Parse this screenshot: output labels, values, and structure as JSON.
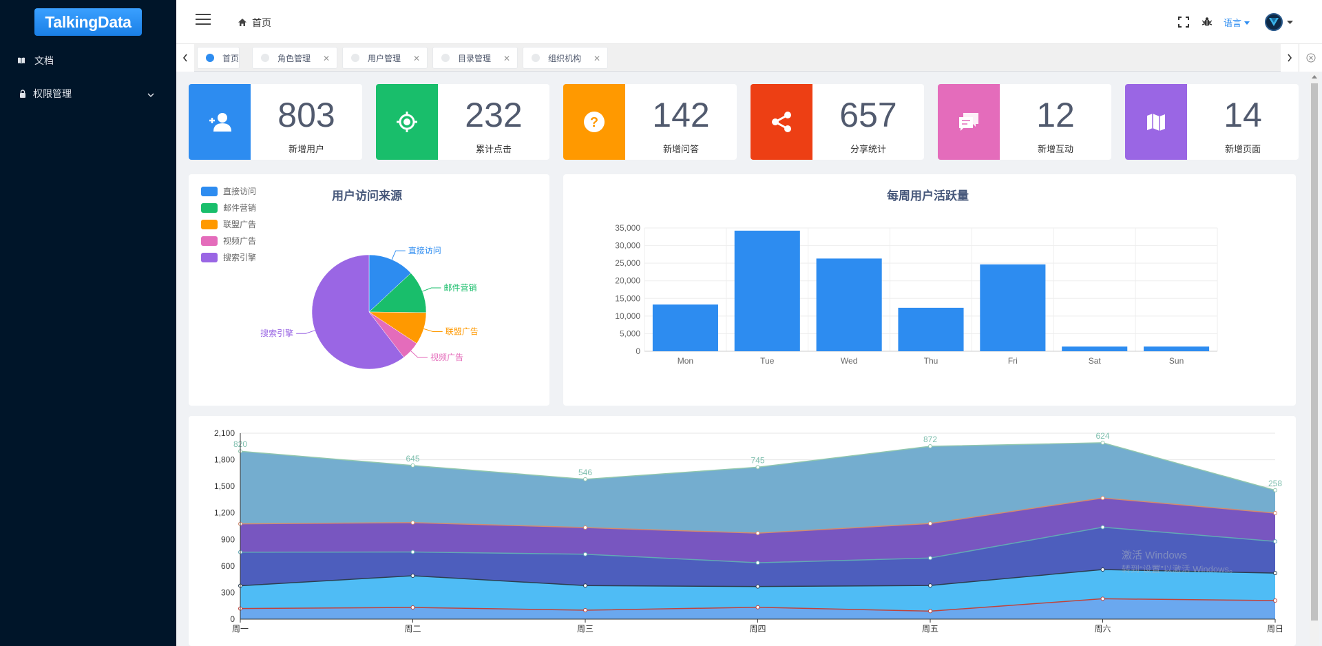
{
  "brand": "TalkingData",
  "sidebar": {
    "items": [
      {
        "label": "文档",
        "icon": "book-icon"
      },
      {
        "label": "权限管理",
        "icon": "lock-icon"
      }
    ]
  },
  "header": {
    "breadcrumb": "首页",
    "language": "语言"
  },
  "tabs": [
    {
      "label": "首页",
      "active": true
    },
    {
      "label": "角色管理",
      "active": false
    },
    {
      "label": "用户管理",
      "active": false
    },
    {
      "label": "目录管理",
      "active": false
    },
    {
      "label": "组织机构",
      "active": false
    }
  ],
  "stats": [
    {
      "value": "803",
      "label": "新增用户",
      "color": "#2d8cf0",
      "icon": "user-add-icon"
    },
    {
      "value": "232",
      "label": "累计点击",
      "color": "#19be6b",
      "icon": "locate-icon"
    },
    {
      "value": "142",
      "label": "新增问答",
      "color": "#ff9900",
      "icon": "help-icon"
    },
    {
      "value": "657",
      "label": "分享统计",
      "color": "#ed3f14",
      "icon": "share-icon"
    },
    {
      "value": "12",
      "label": "新增互动",
      "color": "#e46cbb",
      "icon": "chat-icon"
    },
    {
      "value": "14",
      "label": "新增页面",
      "color": "#9a66e4",
      "icon": "map-icon"
    }
  ],
  "chart_data": [
    {
      "type": "pie",
      "title": "用户访问来源",
      "legend": "top-left",
      "slices": [
        {
          "name": "直接访问",
          "value": 335,
          "color": "#2d8cf0"
        },
        {
          "name": "邮件营销",
          "value": 310,
          "color": "#19be6b"
        },
        {
          "name": "联盟广告",
          "value": 234,
          "color": "#ff9900"
        },
        {
          "name": "视频广告",
          "value": 135,
          "color": "#e46cbb"
        },
        {
          "name": "搜索引擎",
          "value": 1548,
          "color": "#9a66e4"
        }
      ]
    },
    {
      "type": "bar",
      "title": "每周用户活跃量",
      "categories": [
        "Mon",
        "Tue",
        "Wed",
        "Thu",
        "Fri",
        "Sat",
        "Sun"
      ],
      "values": [
        13253,
        34235,
        26321,
        12340,
        24643,
        1322,
        1324
      ],
      "yticks": [
        "0",
        "5,000",
        "10,000",
        "15,000",
        "20,000",
        "25,000",
        "30,000",
        "35,000"
      ],
      "ylim": [
        0,
        35000
      ],
      "color": "#2d8cf0",
      "grid": true
    },
    {
      "type": "area",
      "stacked": true,
      "categories": [
        "周一",
        "周二",
        "周三",
        "周四",
        "周五",
        "周六",
        "周日"
      ],
      "ylim": [
        0,
        2100
      ],
      "yticks": [
        "0",
        "300",
        "600",
        "900",
        "1,200",
        "1,500",
        "1,800",
        "2,100"
      ],
      "series": [
        {
          "values": [
            120,
            132,
            101,
            134,
            90,
            230,
            210
          ],
          "color": "#6aa8ef",
          "line": "#c0433b"
        },
        {
          "values": [
            257,
            358,
            278,
            234,
            290,
            330,
            310
          ],
          "color": "#4fbcf5",
          "line": "#2c3e50"
        },
        {
          "values": [
            379,
            268,
            354,
            269,
            310,
            478,
            358
          ],
          "color": "#4d5ebd",
          "line": "#62a9b5"
        },
        {
          "values": [
            320,
            332,
            301,
            334,
            390,
            330,
            320
          ],
          "color": "#7856c0",
          "line": "#d48a6e"
        },
        {
          "values": [
            820,
            645,
            546,
            745,
            872,
            624,
            258
          ],
          "color": "#74adcf",
          "line": "#91c7ae"
        }
      ],
      "top_labels": [
        "820",
        "645",
        "546",
        "745",
        "872",
        "624",
        "258"
      ]
    }
  ],
  "watermark": [
    "激活 Windows",
    "转到“设置”以激活 Windows。"
  ]
}
